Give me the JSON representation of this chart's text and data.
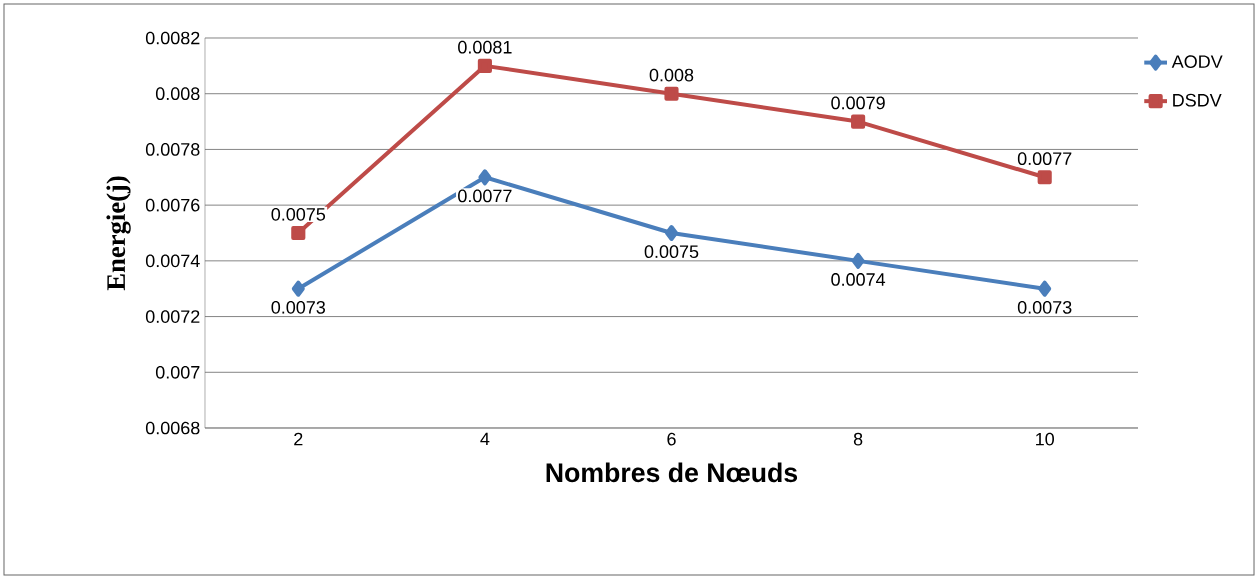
{
  "chart_data": {
    "type": "line",
    "xlabel": "Nombres de Nœuds",
    "ylabel": "Energie(j)",
    "categories": [
      "2",
      "4",
      "6",
      "8",
      "10"
    ],
    "series": [
      {
        "name": "AODV",
        "color": "#4a7ebb",
        "marker": "diamond",
        "values": [
          0.0073,
          0.0077,
          0.0075,
          0.0074,
          0.0073
        ]
      },
      {
        "name": "DSDV",
        "color": "#be4b48",
        "marker": "square",
        "values": [
          0.0075,
          0.0081,
          0.008,
          0.0079,
          0.0077
        ]
      }
    ],
    "ylim": [
      0.0068,
      0.0082
    ],
    "yticks": [
      0.0068,
      0.007,
      0.0072,
      0.0074,
      0.0076,
      0.0078,
      0.008,
      0.0082
    ],
    "grid": "y",
    "legend": "right",
    "data_labels": true,
    "line_style": "solid"
  }
}
